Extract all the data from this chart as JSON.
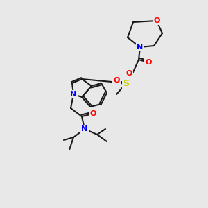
{
  "bg_color": "#e8e8e8",
  "bond_color": "#1a1a1a",
  "bond_width": 1.5,
  "atom_colors": {
    "O": "#ff0000",
    "N": "#0000ff",
    "S": "#cccc00",
    "C": "#1a1a1a"
  },
  "font_size": 7.5
}
